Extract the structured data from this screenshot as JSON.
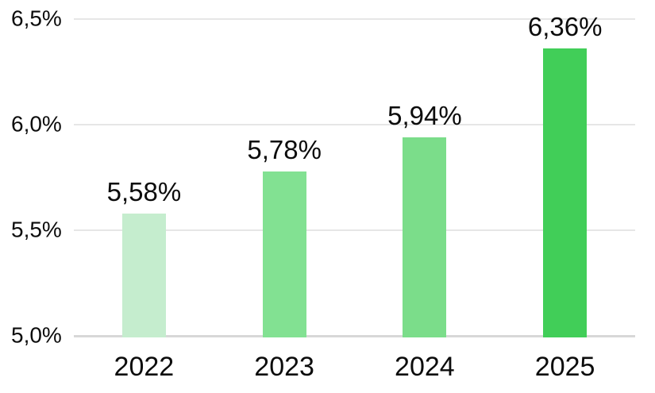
{
  "chart_data": {
    "type": "bar",
    "categories": [
      "2022",
      "2023",
      "2024",
      "2025"
    ],
    "values": [
      5.58,
      5.78,
      5.94,
      6.36
    ],
    "value_labels": [
      "5,58%",
      "5,78%",
      "5,94%",
      "6,36%"
    ],
    "bar_colors": [
      "#c5edce",
      "#82e192",
      "#7bdd8a",
      "#41ce58"
    ],
    "title": "",
    "xlabel": "",
    "ylabel": "",
    "ylim": [
      5.0,
      6.5
    ],
    "yticks": [
      5.0,
      5.5,
      6.0,
      6.5
    ],
    "ytick_labels": [
      "5,0%",
      "5,5%",
      "6,0%",
      "6,5%"
    ],
    "grid": true,
    "legend": false,
    "decimal_separator": ","
  },
  "colors": {
    "background": "#ffffff",
    "gridline": "#e6e6e6",
    "baseline": "#d8d8d8",
    "text": "#0c0c0c"
  }
}
